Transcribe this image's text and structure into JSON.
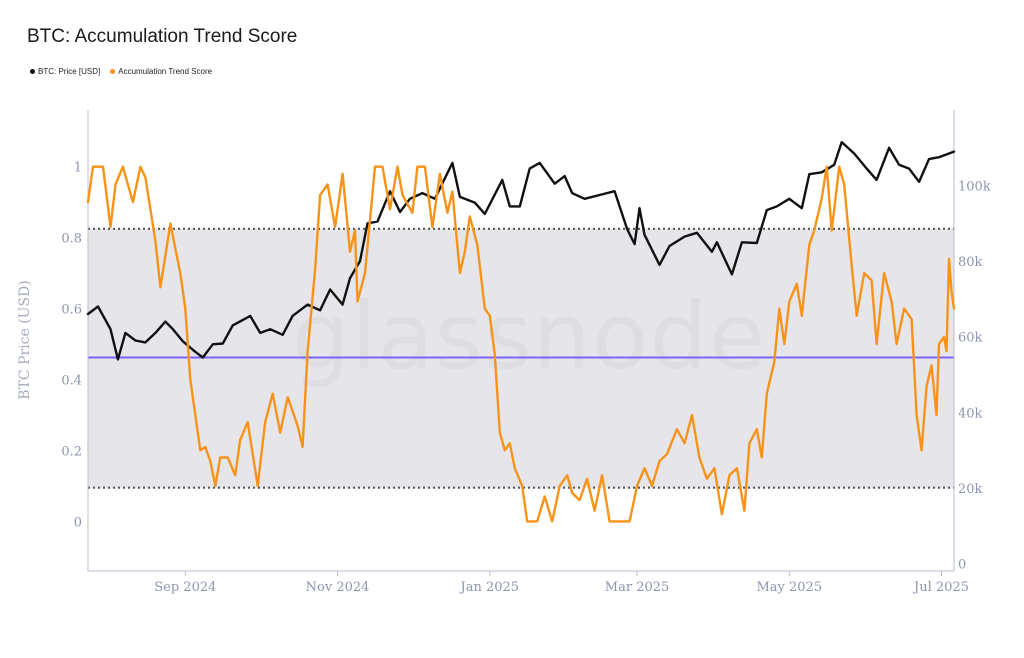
{
  "page": {
    "title": "BTC: Accumulation Trend Score",
    "watermark": "glassnode"
  },
  "colors": {
    "price": "#111111",
    "score": "#f7931a",
    "band": "#e2e2e6",
    "purple": "#7b61ff",
    "threshold": "#555555"
  },
  "chart_data": {
    "type": "line",
    "title": "BTC: Accumulation Trend Score",
    "ylabel": "BTC Price (USD)",
    "legend_placement": "top-left",
    "x_range": [
      "2024-07-24",
      "2025-07-06"
    ],
    "left_axis": {
      "range": [
        -0.14,
        1.16
      ],
      "ticks": [
        "0",
        "0.2",
        "0.4",
        "0.6",
        "0.8",
        "1"
      ],
      "tick_values": [
        0,
        0.2,
        0.4,
        0.6,
        0.8,
        1
      ]
    },
    "right_axis": {
      "range": [
        -2000,
        120000
      ],
      "ticks": [
        "0",
        "20k",
        "40k",
        "60k",
        "80k",
        "100k"
      ],
      "tick_values": [
        0,
        20000,
        40000,
        60000,
        80000,
        100000
      ]
    },
    "x_ticks": [
      {
        "label": "Sep 2024",
        "date": "2024-09-01"
      },
      {
        "label": "Nov 2024",
        "date": "2024-11-01"
      },
      {
        "label": "Jan 2025",
        "date": "2025-01-01"
      },
      {
        "label": "Mar 2025",
        "date": "2025-03-01"
      },
      {
        "label": "May 2025",
        "date": "2025-05-01"
      },
      {
        "label": "Jul 2025",
        "date": "2025-07-01"
      }
    ],
    "band": {
      "low": 0.095,
      "high": 0.825
    },
    "purple_line": {
      "start": 0.462,
      "end": 0.462
    },
    "series": [
      {
        "name": "BTC: Price [USD]",
        "axis": "right",
        "points": [
          [
            "2024-07-24",
            66000
          ],
          [
            "2024-07-28",
            68000
          ],
          [
            "2024-08-02",
            62000
          ],
          [
            "2024-08-05",
            54000
          ],
          [
            "2024-08-08",
            61000
          ],
          [
            "2024-08-12",
            59000
          ],
          [
            "2024-08-16",
            58500
          ],
          [
            "2024-08-20",
            61000
          ],
          [
            "2024-08-24",
            64000
          ],
          [
            "2024-08-27",
            62000
          ],
          [
            "2024-08-31",
            58800
          ],
          [
            "2024-09-05",
            56000
          ],
          [
            "2024-09-08",
            54500
          ],
          [
            "2024-09-12",
            58000
          ],
          [
            "2024-09-16",
            58200
          ],
          [
            "2024-09-20",
            63000
          ],
          [
            "2024-09-27",
            65500
          ],
          [
            "2024-10-01",
            61000
          ],
          [
            "2024-10-05",
            62000
          ],
          [
            "2024-10-10",
            60500
          ],
          [
            "2024-10-14",
            65500
          ],
          [
            "2024-10-20",
            68500
          ],
          [
            "2024-10-25",
            67000
          ],
          [
            "2024-10-29",
            72500
          ],
          [
            "2024-11-03",
            68500
          ],
          [
            "2024-11-06",
            75500
          ],
          [
            "2024-11-10",
            80000
          ],
          [
            "2024-11-13",
            90000
          ],
          [
            "2024-11-17",
            90500
          ],
          [
            "2024-11-22",
            98500
          ],
          [
            "2024-11-26",
            93000
          ],
          [
            "2024-11-30",
            96500
          ],
          [
            "2024-12-05",
            98000
          ],
          [
            "2024-12-10",
            96500
          ],
          [
            "2024-12-17",
            106000
          ],
          [
            "2024-12-20",
            97000
          ],
          [
            "2024-12-26",
            95500
          ],
          [
            "2024-12-30",
            92500
          ],
          [
            "2025-01-06",
            101500
          ],
          [
            "2025-01-09",
            94500
          ],
          [
            "2025-01-13",
            94500
          ],
          [
            "2025-01-17",
            104500
          ],
          [
            "2025-01-21",
            106000
          ],
          [
            "2025-01-27",
            100500
          ],
          [
            "2025-01-31",
            102500
          ],
          [
            "2025-02-03",
            98000
          ],
          [
            "2025-02-08",
            96500
          ],
          [
            "2025-02-14",
            97500
          ],
          [
            "2025-02-20",
            98500
          ],
          [
            "2025-02-25",
            88500
          ],
          [
            "2025-02-28",
            84500
          ],
          [
            "2025-03-02",
            94000
          ],
          [
            "2025-03-04",
            87000
          ],
          [
            "2025-03-10",
            79000
          ],
          [
            "2025-03-14",
            84000
          ],
          [
            "2025-03-20",
            86500
          ],
          [
            "2025-03-25",
            87500
          ],
          [
            "2025-03-31",
            82500
          ],
          [
            "2025-04-02",
            85000
          ],
          [
            "2025-04-08",
            76500
          ],
          [
            "2025-04-12",
            85000
          ],
          [
            "2025-04-18",
            84800
          ],
          [
            "2025-04-22",
            93500
          ],
          [
            "2025-04-26",
            94500
          ],
          [
            "2025-05-01",
            96500
          ],
          [
            "2025-05-06",
            94000
          ],
          [
            "2025-05-09",
            103000
          ],
          [
            "2025-05-14",
            103500
          ],
          [
            "2025-05-19",
            105500
          ],
          [
            "2025-05-22",
            111500
          ],
          [
            "2025-05-27",
            108500
          ],
          [
            "2025-06-01",
            104500
          ],
          [
            "2025-06-05",
            101500
          ],
          [
            "2025-06-10",
            110000
          ],
          [
            "2025-06-14",
            105500
          ],
          [
            "2025-06-18",
            104500
          ],
          [
            "2025-06-22",
            101000
          ],
          [
            "2025-06-26",
            107000
          ],
          [
            "2025-06-30",
            107500
          ],
          [
            "2025-07-04",
            108500
          ],
          [
            "2025-07-06",
            109000
          ]
        ]
      },
      {
        "name": "Accumulation Trend Score",
        "axis": "left",
        "points": [
          [
            "2024-07-24",
            0.9
          ],
          [
            "2024-07-26",
            1.0
          ],
          [
            "2024-07-30",
            1.0
          ],
          [
            "2024-08-02",
            0.83
          ],
          [
            "2024-08-04",
            0.95
          ],
          [
            "2024-08-07",
            1.0
          ],
          [
            "2024-08-11",
            0.9
          ],
          [
            "2024-08-14",
            1.0
          ],
          [
            "2024-08-16",
            0.97
          ],
          [
            "2024-08-20",
            0.79
          ],
          [
            "2024-08-22",
            0.66
          ],
          [
            "2024-08-24",
            0.75
          ],
          [
            "2024-08-26",
            0.84
          ],
          [
            "2024-08-28",
            0.77
          ],
          [
            "2024-08-30",
            0.7
          ],
          [
            "2024-09-01",
            0.6
          ],
          [
            "2024-09-03",
            0.4
          ],
          [
            "2024-09-05",
            0.3
          ],
          [
            "2024-09-07",
            0.2
          ],
          [
            "2024-09-09",
            0.21
          ],
          [
            "2024-09-11",
            0.17
          ],
          [
            "2024-09-13",
            0.1
          ],
          [
            "2024-09-15",
            0.18
          ],
          [
            "2024-09-18",
            0.18
          ],
          [
            "2024-09-21",
            0.13
          ],
          [
            "2024-09-23",
            0.23
          ],
          [
            "2024-09-26",
            0.28
          ],
          [
            "2024-09-28",
            0.19
          ],
          [
            "2024-09-30",
            0.1
          ],
          [
            "2024-10-03",
            0.28
          ],
          [
            "2024-10-06",
            0.36
          ],
          [
            "2024-10-09",
            0.25
          ],
          [
            "2024-10-12",
            0.35
          ],
          [
            "2024-10-16",
            0.27
          ],
          [
            "2024-10-18",
            0.21
          ],
          [
            "2024-10-20",
            0.48
          ],
          [
            "2024-10-23",
            0.71
          ],
          [
            "2024-10-25",
            0.92
          ],
          [
            "2024-10-28",
            0.95
          ],
          [
            "2024-10-31",
            0.83
          ],
          [
            "2024-11-03",
            0.98
          ],
          [
            "2024-11-06",
            0.76
          ],
          [
            "2024-11-08",
            0.82
          ],
          [
            "2024-11-09",
            0.62
          ],
          [
            "2024-11-12",
            0.7
          ],
          [
            "2024-11-16",
            1.0
          ],
          [
            "2024-11-19",
            1.0
          ],
          [
            "2024-11-22",
            0.88
          ],
          [
            "2024-11-25",
            1.0
          ],
          [
            "2024-11-27",
            0.92
          ],
          [
            "2024-12-01",
            0.87
          ],
          [
            "2024-12-03",
            1.0
          ],
          [
            "2024-12-06",
            1.0
          ],
          [
            "2024-12-09",
            0.83
          ],
          [
            "2024-12-12",
            0.98
          ],
          [
            "2024-12-15",
            0.87
          ],
          [
            "2024-12-17",
            0.93
          ],
          [
            "2024-12-20",
            0.7
          ],
          [
            "2024-12-22",
            0.76
          ],
          [
            "2024-12-24",
            0.86
          ],
          [
            "2024-12-27",
            0.78
          ],
          [
            "2024-12-30",
            0.6
          ],
          [
            "2025-01-01",
            0.58
          ],
          [
            "2025-01-03",
            0.47
          ],
          [
            "2025-01-05",
            0.25
          ],
          [
            "2025-01-07",
            0.2
          ],
          [
            "2025-01-09",
            0.22
          ],
          [
            "2025-01-11",
            0.15
          ],
          [
            "2025-01-14",
            0.1
          ],
          [
            "2025-01-16",
            0.0
          ],
          [
            "2025-01-20",
            0.0
          ],
          [
            "2025-01-23",
            0.07
          ],
          [
            "2025-01-26",
            0.0
          ],
          [
            "2025-01-29",
            0.1
          ],
          [
            "2025-02-01",
            0.13
          ],
          [
            "2025-02-03",
            0.08
          ],
          [
            "2025-02-06",
            0.06
          ],
          [
            "2025-02-09",
            0.12
          ],
          [
            "2025-02-12",
            0.03
          ],
          [
            "2025-02-15",
            0.13
          ],
          [
            "2025-02-18",
            0.0
          ],
          [
            "2025-02-22",
            0.0
          ],
          [
            "2025-02-26",
            0.0
          ],
          [
            "2025-03-01",
            0.1
          ],
          [
            "2025-03-04",
            0.15
          ],
          [
            "2025-03-07",
            0.1
          ],
          [
            "2025-03-10",
            0.17
          ],
          [
            "2025-03-13",
            0.19
          ],
          [
            "2025-03-17",
            0.26
          ],
          [
            "2025-03-20",
            0.22
          ],
          [
            "2025-03-23",
            0.3
          ],
          [
            "2025-03-26",
            0.18
          ],
          [
            "2025-03-29",
            0.12
          ],
          [
            "2025-04-01",
            0.15
          ],
          [
            "2025-04-04",
            0.02
          ],
          [
            "2025-04-07",
            0.13
          ],
          [
            "2025-04-10",
            0.15
          ],
          [
            "2025-04-13",
            0.03
          ],
          [
            "2025-04-15",
            0.22
          ],
          [
            "2025-04-18",
            0.26
          ],
          [
            "2025-04-20",
            0.18
          ],
          [
            "2025-04-22",
            0.36
          ],
          [
            "2025-04-25",
            0.45
          ],
          [
            "2025-04-27",
            0.6
          ],
          [
            "2025-04-29",
            0.5
          ],
          [
            "2025-05-01",
            0.62
          ],
          [
            "2025-05-04",
            0.67
          ],
          [
            "2025-05-06",
            0.58
          ],
          [
            "2025-05-09",
            0.78
          ],
          [
            "2025-05-11",
            0.82
          ],
          [
            "2025-05-14",
            0.91
          ],
          [
            "2025-05-16",
            1.0
          ],
          [
            "2025-05-18",
            0.82
          ],
          [
            "2025-05-21",
            1.0
          ],
          [
            "2025-05-23",
            0.95
          ],
          [
            "2025-05-26",
            0.72
          ],
          [
            "2025-05-28",
            0.58
          ],
          [
            "2025-05-31",
            0.7
          ],
          [
            "2025-06-03",
            0.68
          ],
          [
            "2025-06-05",
            0.5
          ],
          [
            "2025-06-08",
            0.7
          ],
          [
            "2025-06-11",
            0.62
          ],
          [
            "2025-06-13",
            0.5
          ],
          [
            "2025-06-16",
            0.6
          ],
          [
            "2025-06-19",
            0.57
          ],
          [
            "2025-06-21",
            0.3
          ],
          [
            "2025-06-23",
            0.2
          ],
          [
            "2025-06-25",
            0.38
          ],
          [
            "2025-06-27",
            0.44
          ],
          [
            "2025-06-29",
            0.3
          ],
          [
            "2025-06-30",
            0.5
          ],
          [
            "2025-07-02",
            0.52
          ],
          [
            "2025-07-03",
            0.48
          ],
          [
            "2025-07-04",
            0.74
          ],
          [
            "2025-07-05",
            0.65
          ],
          [
            "2025-07-06",
            0.6
          ]
        ]
      }
    ]
  }
}
